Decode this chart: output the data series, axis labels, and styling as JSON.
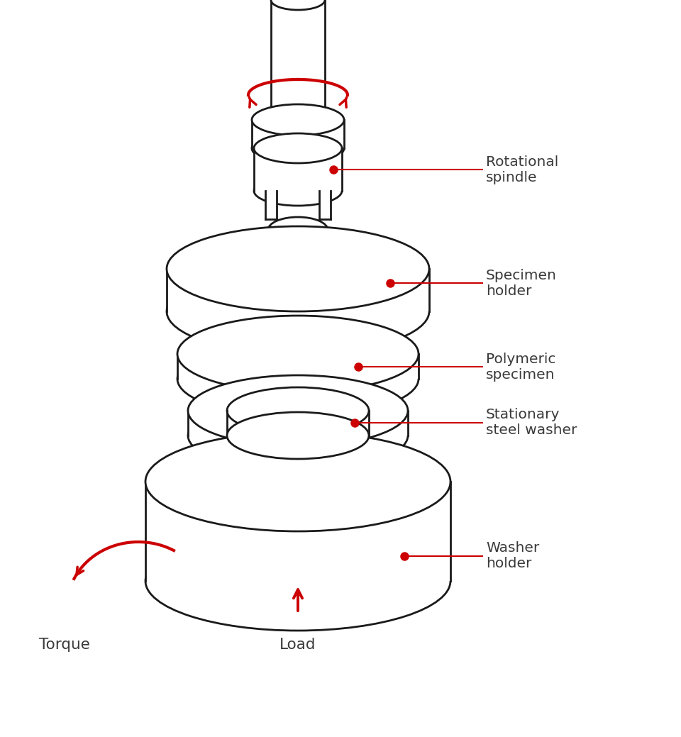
{
  "bg_color": "#ffffff",
  "line_color": "#1a1a1a",
  "red_color": "#cc0000",
  "label_color": "#3a3a3a",
  "label_fontsize": 14.5,
  "labels": {
    "rotational_spindle": "Rotational\nspindle",
    "specimen_holder": "Specimen\nholder",
    "polymeric_specimen": "Polymeric\nspecimen",
    "stationary_steel_washer": "Stationary\nsteel washer",
    "washer_holder": "Washer\nholder",
    "torque": "Torque",
    "load": "Load"
  },
  "figsize": [
    9.6,
    10.39
  ],
  "dpi": 100
}
